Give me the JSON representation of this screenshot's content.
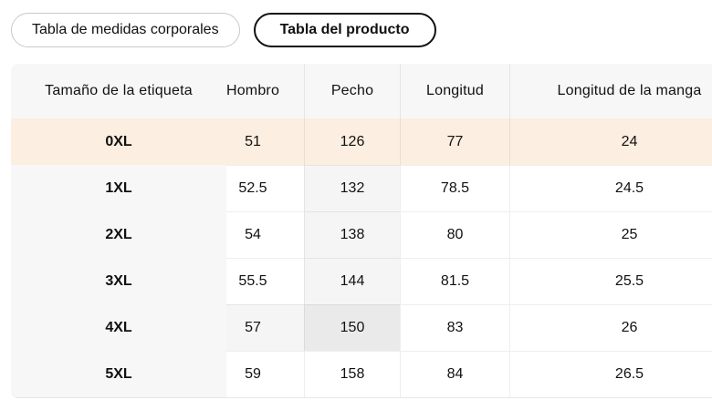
{
  "tabs": [
    {
      "label": "Tabla de medidas corporales",
      "active": false
    },
    {
      "label": "Tabla del producto",
      "active": true
    }
  ],
  "table": {
    "columns": [
      {
        "label": "Tamaño de la etiqueta"
      },
      {
        "label": "Hombro"
      },
      {
        "label": "Pecho"
      },
      {
        "label": "Longitud"
      },
      {
        "label": "Longitud de la manga"
      }
    ],
    "rows": [
      {
        "label": "0XL",
        "values": [
          "51",
          "126",
          "77",
          "24"
        ]
      },
      {
        "label": "1XL",
        "values": [
          "52.5",
          "132",
          "78.5",
          "24.5"
        ]
      },
      {
        "label": "2XL",
        "values": [
          "54",
          "138",
          "80",
          "25"
        ]
      },
      {
        "label": "3XL",
        "values": [
          "55.5",
          "144",
          "81.5",
          "25.5"
        ]
      },
      {
        "label": "4XL",
        "values": [
          "57",
          "150",
          "83",
          "26"
        ]
      },
      {
        "label": "5XL",
        "values": [
          "59",
          "158",
          "84",
          "26.5"
        ]
      }
    ],
    "selected_row_index": 0,
    "tinted_cells": [
      [
        1,
        1
      ],
      [
        2,
        1
      ],
      [
        3,
        1
      ],
      [
        4,
        0
      ]
    ],
    "strong_tinted_cells": [
      [
        4,
        1
      ]
    ]
  },
  "colors": {
    "selected-row-bg": "#fceee0",
    "header-bg": "#f7f7f7",
    "tint-bg": "#f5f5f5",
    "tint-strong-bg": "#eaeaea",
    "active-tab-border": "#111111",
    "inactive-tab-border": "#c9c9c9",
    "text": "#111111"
  }
}
